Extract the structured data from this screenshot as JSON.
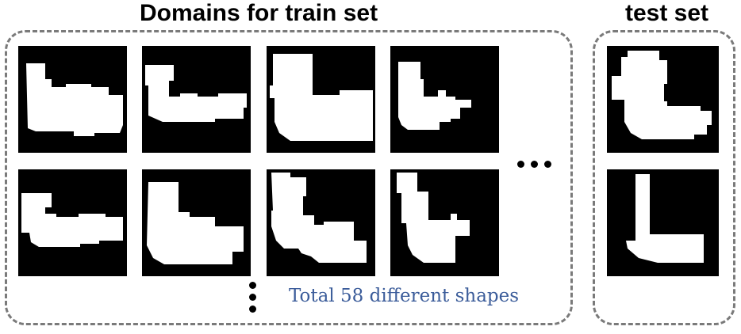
{
  "train": {
    "title": "Domains for train set",
    "note": "Total 58 different shapes",
    "shapes": [
      "L-shaped foot with long toe and notches",
      "low stepped L with narrow notched toe",
      "tall block L with wide base",
      "L with notch and stepped toe",
      "low L with notched toe",
      "L with tall stem and notched base",
      "L with top bump and notched base",
      "L with narrow stem and wide base"
    ]
  },
  "test": {
    "title": "test set",
    "shapes": [
      "thick L with top bump",
      "thin L with sloped corner"
    ]
  },
  "colors": {
    "tile_background": "#000000",
    "shape_fill": "#ffffff",
    "box_border": "#7a7a7a",
    "note_text": "#3b5c9a"
  }
}
